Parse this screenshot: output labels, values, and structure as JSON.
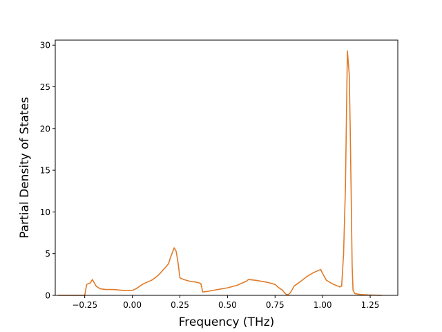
{
  "chart_data": {
    "type": "line",
    "title": "",
    "xlabel": "Frequency (THz)",
    "ylabel": "Partial Density of States",
    "xlim": [
      -0.405,
      1.395
    ],
    "ylim": [
      0,
      30.6
    ],
    "grid": false,
    "legend": "none",
    "xticks": [
      -0.25,
      0.0,
      0.25,
      0.5,
      0.75,
      1.0,
      1.25
    ],
    "xtick_labels": [
      "−0.25",
      "0.00",
      "0.25",
      "0.50",
      "0.75",
      "1.00",
      "1.25"
    ],
    "yticks": [
      0,
      5,
      10,
      15,
      20,
      25,
      30
    ],
    "ytick_labels": [
      "0",
      "5",
      "10",
      "15",
      "20",
      "25",
      "30"
    ],
    "series": [
      {
        "color": "#e07b28",
        "x": [
          -0.39,
          -0.3,
          -0.25,
          -0.24,
          -0.23,
          -0.22,
          -0.21,
          -0.2,
          -0.19,
          -0.17,
          -0.14,
          -0.1,
          -0.05,
          0.0,
          0.02,
          0.04,
          0.06,
          0.08,
          0.1,
          0.12,
          0.14,
          0.16,
          0.18,
          0.19,
          0.2,
          0.21,
          0.22,
          0.23,
          0.24,
          0.25,
          0.27,
          0.3,
          0.33,
          0.35,
          0.36,
          0.37,
          0.4,
          0.45,
          0.5,
          0.55,
          0.58,
          0.6,
          0.61,
          0.65,
          0.7,
          0.72,
          0.75,
          0.77,
          0.79,
          0.8,
          0.81,
          0.82,
          0.83,
          0.84,
          0.85,
          0.88,
          0.92,
          0.95,
          0.98,
          0.99,
          1.0,
          1.02,
          1.05,
          1.08,
          1.09,
          1.1,
          1.11,
          1.12,
          1.13,
          1.14,
          1.145,
          1.15,
          1.155,
          1.16,
          1.17,
          1.2,
          1.24,
          1.31
        ],
        "y": [
          0,
          0,
          0,
          1.3,
          1.4,
          1.5,
          1.9,
          1.5,
          1.1,
          0.8,
          0.7,
          0.7,
          0.6,
          0.6,
          0.8,
          1.1,
          1.4,
          1.6,
          1.8,
          2.1,
          2.5,
          3.0,
          3.5,
          3.8,
          4.5,
          5.1,
          5.7,
          5.3,
          4.0,
          2.1,
          1.9,
          1.7,
          1.6,
          1.5,
          1.4,
          0.4,
          0.5,
          0.7,
          0.9,
          1.2,
          1.5,
          1.7,
          1.9,
          1.8,
          1.6,
          1.5,
          1.3,
          0.9,
          0.6,
          0.3,
          0.1,
          0.1,
          0.3,
          0.7,
          1.1,
          1.6,
          2.3,
          2.7,
          3.0,
          3.1,
          2.6,
          1.8,
          1.4,
          1.1,
          1.0,
          1.1,
          5.0,
          13.0,
          29.3,
          26.5,
          20.0,
          12.0,
          3.5,
          0.6,
          0.2,
          0.1,
          0.05,
          0
        ]
      }
    ]
  }
}
